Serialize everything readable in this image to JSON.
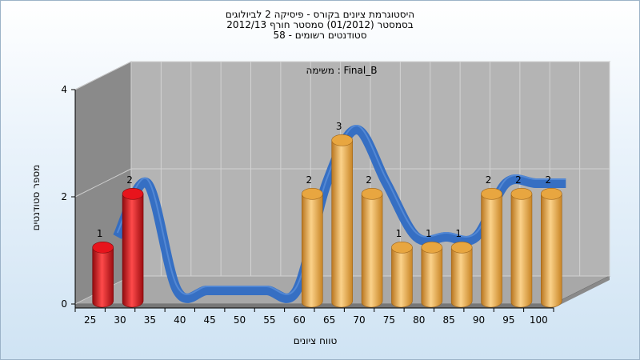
{
  "titles": [
    "היסטוגרמת ציונים בקורס - פיסיקה 2 לביולוגים",
    "בסמסטר (01/2012) סמסטר חורף 2012/13",
    "סטודנטים רשומים - 58"
  ],
  "chart_data": {
    "type": "bar",
    "inner_title": "משימה : Final_B",
    "xlabel": "טווח ציונים",
    "ylabel": "מספר סטודנטים",
    "x_ticks": [
      25,
      30,
      35,
      40,
      45,
      50,
      55,
      60,
      65,
      70,
      75,
      80,
      85,
      90,
      95,
      100
    ],
    "y_ticks": [
      0,
      2,
      4
    ],
    "ylim": [
      0,
      4
    ],
    "bars": [
      {
        "x": 25,
        "value": 1,
        "color": "#e8141c"
      },
      {
        "x": 30,
        "value": 2,
        "color": "#e8141c"
      },
      {
        "x": 35,
        "value": 0,
        "color": "#e8141c"
      },
      {
        "x": 40,
        "value": 0,
        "color": "#e8141c"
      },
      {
        "x": 45,
        "value": 0,
        "color": "#e8141c"
      },
      {
        "x": 50,
        "value": 0,
        "color": "#e8141c"
      },
      {
        "x": 55,
        "value": 0,
        "color": "#e8141c"
      },
      {
        "x": 60,
        "value": 2,
        "color": "#e8a640"
      },
      {
        "x": 65,
        "value": 3,
        "color": "#e8a640"
      },
      {
        "x": 70,
        "value": 2,
        "color": "#e8a640"
      },
      {
        "x": 75,
        "value": 1,
        "color": "#e8a640"
      },
      {
        "x": 80,
        "value": 1,
        "color": "#e8a640"
      },
      {
        "x": 85,
        "value": 1,
        "color": "#e8a640"
      },
      {
        "x": 90,
        "value": 2,
        "color": "#e8a640"
      },
      {
        "x": 95,
        "value": 2,
        "color": "#e8a640"
      },
      {
        "x": 100,
        "value": 2,
        "color": "#e8a640"
      }
    ],
    "trend_line": {
      "color": "#2f6cc4",
      "shadow_color": "#666666"
    },
    "colors": {
      "failing": "#e8141c",
      "passing": "#e8a640",
      "wall": "#b4b4b4",
      "side_wall": "#8a8a8a",
      "floor": "#a8a8a8"
    }
  }
}
